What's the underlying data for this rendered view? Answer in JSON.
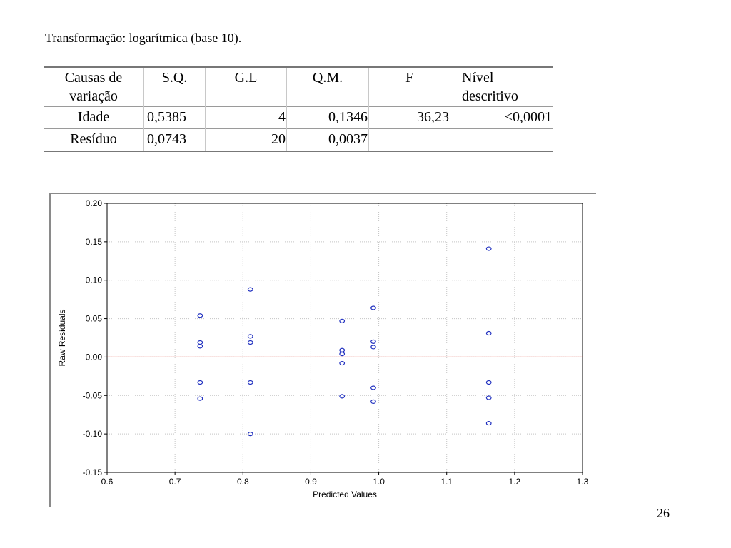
{
  "heading": "Transformação: logarítmica (base 10).",
  "anova_table": {
    "headers": [
      "Causas de variação",
      "S.Q.",
      "G.L",
      "Q.M.",
      "F",
      "Nível descritivo"
    ],
    "header_lines": [
      [
        "Causas de",
        "variação"
      ],
      [
        "S.Q."
      ],
      [
        "G.L"
      ],
      [
        "Q.M."
      ],
      [
        "F"
      ],
      [
        "Nível",
        "descritivo"
      ]
    ],
    "rows": [
      [
        "Idade",
        "0,5385",
        "4",
        "0,1346",
        "36,23",
        "<0,0001"
      ],
      [
        "Resíduo",
        "0,0743",
        "20",
        "0,0037",
        "",
        ""
      ]
    ]
  },
  "chart_data": {
    "type": "scatter",
    "title": "",
    "xlabel": "Predicted Values",
    "ylabel": "Raw Residuals",
    "xlim": [
      0.6,
      1.3
    ],
    "ylim": [
      -0.15,
      0.2
    ],
    "xticks": [
      0.6,
      0.7,
      0.8,
      0.9,
      1.0,
      1.1,
      1.2,
      1.3
    ],
    "xtick_labels": [
      "0.6",
      "0.7",
      "0.8",
      "0.9",
      "1.0",
      "1.1",
      "1.2",
      "1.3"
    ],
    "yticks": [
      0.2,
      0.15,
      0.1,
      0.05,
      0.0,
      -0.05,
      -0.1,
      -0.15
    ],
    "ytick_labels": [
      "0.20",
      "0.15",
      "0.10",
      "0.05",
      "0.00",
      "-0.05",
      "-0.10",
      "-0.15"
    ],
    "grid": true,
    "reference_line": {
      "y": 0.0,
      "color": "#e8453c"
    },
    "marker_color": "#1f2fbf",
    "points": [
      {
        "x": 0.737,
        "y": 0.054
      },
      {
        "x": 0.737,
        "y": 0.019
      },
      {
        "x": 0.737,
        "y": 0.014
      },
      {
        "x": 0.737,
        "y": -0.033
      },
      {
        "x": 0.737,
        "y": -0.054
      },
      {
        "x": 0.811,
        "y": 0.088
      },
      {
        "x": 0.811,
        "y": 0.027
      },
      {
        "x": 0.811,
        "y": 0.019
      },
      {
        "x": 0.811,
        "y": -0.033
      },
      {
        "x": 0.811,
        "y": -0.1
      },
      {
        "x": 0.946,
        "y": 0.047
      },
      {
        "x": 0.946,
        "y": 0.009
      },
      {
        "x": 0.946,
        "y": 0.004
      },
      {
        "x": 0.946,
        "y": -0.008
      },
      {
        "x": 0.946,
        "y": -0.051
      },
      {
        "x": 0.992,
        "y": 0.064
      },
      {
        "x": 0.992,
        "y": 0.02
      },
      {
        "x": 0.992,
        "y": 0.013
      },
      {
        "x": 0.992,
        "y": -0.04
      },
      {
        "x": 0.992,
        "y": -0.058
      },
      {
        "x": 1.162,
        "y": 0.141
      },
      {
        "x": 1.162,
        "y": 0.031
      },
      {
        "x": 1.162,
        "y": -0.033
      },
      {
        "x": 1.162,
        "y": -0.053
      },
      {
        "x": 1.162,
        "y": -0.086
      }
    ]
  },
  "slide_number": "26"
}
